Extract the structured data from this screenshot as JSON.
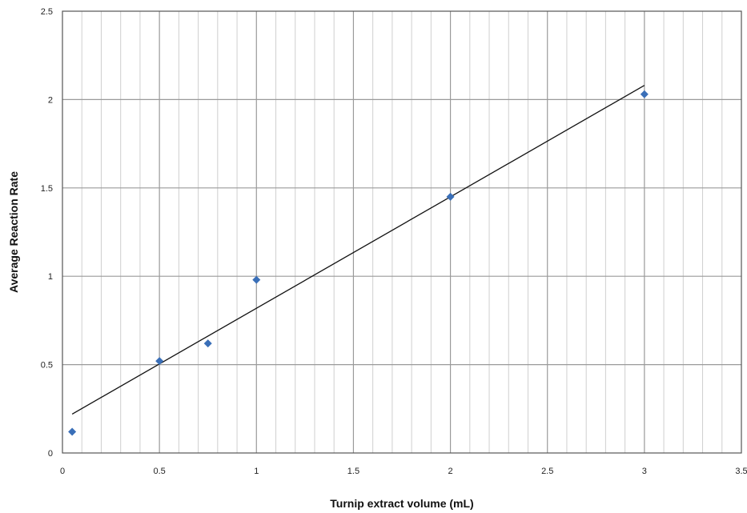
{
  "chart_data": {
    "type": "scatter",
    "title": "",
    "xlabel": "Turnip extract volume (mL)",
    "ylabel": "Average Reaction Rate",
    "xlim": [
      0,
      3.5
    ],
    "ylim": [
      0,
      2.5
    ],
    "x_ticks": [
      "0",
      "0.5",
      "1",
      "1.5",
      "2",
      "2.5",
      "3",
      "3.5"
    ],
    "y_ticks": [
      "0",
      "0.5",
      "1",
      "1.5",
      "2",
      "2.5"
    ],
    "x_major_step": 0.5,
    "x_minor_step": 0.1,
    "y_major_step": 0.5,
    "grid": true,
    "legend": "none",
    "series": [
      {
        "points": [
          {
            "x": 0.05,
            "y": 0.12
          },
          {
            "x": 0.5,
            "y": 0.52
          },
          {
            "x": 0.75,
            "y": 0.62
          },
          {
            "x": 1.0,
            "y": 0.98
          },
          {
            "x": 2.0,
            "y": 1.45
          },
          {
            "x": 3.0,
            "y": 2.03
          }
        ],
        "color": "#3a6fb8"
      }
    ],
    "trendline": {
      "type": "linear",
      "from": {
        "x": 0.05,
        "y": 0.22
      },
      "to": {
        "x": 3.0,
        "y": 2.08
      },
      "color": "#111111"
    },
    "colors": {
      "major_grid": "#9a9a9a",
      "minor_grid": "#cfcfcf",
      "axis": "#555555"
    }
  }
}
